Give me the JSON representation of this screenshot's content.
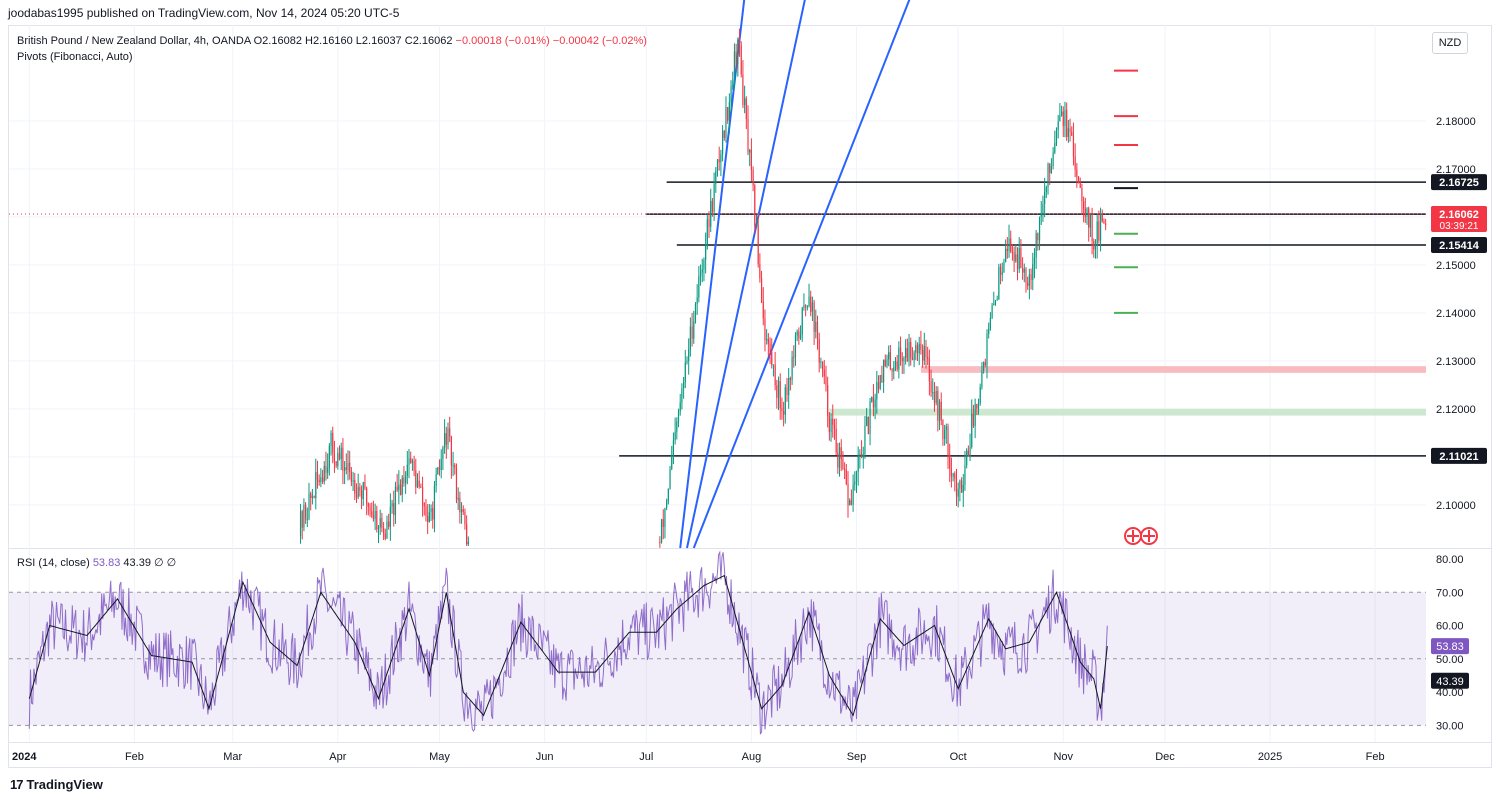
{
  "header": {
    "publisher": "joodabas1995 published on TradingView.com, Nov 14, 2024 05:20 UTC-5"
  },
  "legend": {
    "symbol": "British Pound / New Zealand Dollar, 4h, OANDA",
    "open": "O2.16082",
    "high": "H2.16160",
    "low": "L2.16037",
    "close": "C2.16062",
    "change": "−0.00018 (−0.01%)",
    "spread": "−0.00042 (−0.02%)",
    "indicator": "Pivots (Fibonacci, Auto)"
  },
  "currency_button": "NZD",
  "rsi_legend": {
    "label": "RSI (14, close)",
    "rsi": "53.83",
    "ma": "43.39",
    "extra1": "∅",
    "extra2": "∅"
  },
  "footer": {
    "brand": "TradingView",
    "logo": "17"
  },
  "colors": {
    "up": "#089981",
    "down": "#f23645",
    "rsi": "#7e57c2",
    "trend": "#2962ff",
    "pivot_r": "#f23645",
    "pivot_s": "#4caf50",
    "band": "#7e57c2"
  },
  "chart_data": [
    {
      "type": "candlestick",
      "title": "British Pound / New Zealand Dollar, 4h, OANDA",
      "ylim": [
        2.091,
        2.2
      ],
      "y_ticks": [
        2.1,
        2.11,
        2.12,
        2.13,
        2.14,
        2.15,
        2.16,
        2.17,
        2.18
      ],
      "y_tick_labels": [
        "2.10000",
        "2.11021",
        "2.12000",
        "2.13000",
        "2.14000",
        "2.15000",
        "2.16058",
        "2.17000",
        "2.18000"
      ],
      "x_tick_labels": [
        "2024",
        "Feb",
        "Mar",
        "Apr",
        "May",
        "Jun",
        "Jul",
        "Aug",
        "Sep",
        "Oct",
        "Nov",
        "Dec",
        "2025",
        "Feb"
      ],
      "price_path": [
        {
          "date": "2024-03-20",
          "close": 2.094
        },
        {
          "date": "2024-03-30",
          "close": 2.112
        },
        {
          "date": "2024-04-07",
          "close": 2.104
        },
        {
          "date": "2024-04-15",
          "close": 2.094
        },
        {
          "date": "2024-04-22",
          "close": 2.11
        },
        {
          "date": "2024-04-28",
          "close": 2.096
        },
        {
          "date": "2024-05-03",
          "close": 2.115
        },
        {
          "date": "2024-05-07",
          "close": 2.1
        },
        {
          "date": "2024-05-10",
          "close": 2.09
        },
        {
          "date": "2024-07-05",
          "close": 2.092
        },
        {
          "date": "2024-07-15",
          "close": 2.14
        },
        {
          "date": "2024-07-25",
          "close": 2.183
        },
        {
          "date": "2024-07-28",
          "close": 2.197
        },
        {
          "date": "2024-08-02",
          "close": 2.16
        },
        {
          "date": "2024-08-05",
          "close": 2.136
        },
        {
          "date": "2024-08-10",
          "close": 2.12
        },
        {
          "date": "2024-08-18",
          "close": 2.145
        },
        {
          "date": "2024-08-24",
          "close": 2.118
        },
        {
          "date": "2024-08-30",
          "close": 2.1
        },
        {
          "date": "2024-09-08",
          "close": 2.128
        },
        {
          "date": "2024-09-20",
          "close": 2.134
        },
        {
          "date": "2024-09-28",
          "close": 2.112
        },
        {
          "date": "2024-10-01",
          "close": 2.101
        },
        {
          "date": "2024-10-08",
          "close": 2.128
        },
        {
          "date": "2024-10-15",
          "close": 2.155
        },
        {
          "date": "2024-10-22",
          "close": 2.148
        },
        {
          "date": "2024-10-28",
          "close": 2.17
        },
        {
          "date": "2024-10-31",
          "close": 2.184
        },
        {
          "date": "2024-11-05",
          "close": 2.17
        },
        {
          "date": "2024-11-10",
          "close": 2.155
        },
        {
          "date": "2024-11-14",
          "close": 2.16062
        }
      ],
      "last_price": {
        "value": 2.16062,
        "label": "2.16062",
        "countdown": "03:39:21"
      },
      "horizontal_levels": [
        {
          "value": 2.16725,
          "label": "2.16725",
          "start": "2024-07-07"
        },
        {
          "value": 2.16058,
          "label": "2.16058",
          "start": "2024-07-01"
        },
        {
          "value": 2.15414,
          "label": "2.15414",
          "start": "2024-07-10"
        },
        {
          "value": 2.11021,
          "label": "2.11021",
          "start": "2024-06-23"
        }
      ],
      "zones": [
        {
          "low": 2.1275,
          "high": 2.1289,
          "start": "2024-09-20",
          "color": "#f7b5b9"
        },
        {
          "low": 2.1186,
          "high": 2.12,
          "start": "2024-08-24",
          "color": "#c8e6c9"
        }
      ],
      "pivots": {
        "resistance": [
          2.175,
          2.181,
          2.1905
        ],
        "pivot": 2.166,
        "support": [
          2.1565,
          2.1495,
          2.14
        ],
        "start": "2024-11-10",
        "end": "2024-11-16"
      },
      "trendlines": [
        {
          "from": {
            "date": "2024-07-11",
            "value": 2.091
          },
          "to": {
            "date": "2024-07-30",
            "value": 2.206
          }
        },
        {
          "from": {
            "date": "2024-07-13",
            "value": 2.091
          },
          "to": {
            "date": "2024-08-17",
            "value": 2.206
          }
        },
        {
          "from": {
            "date": "2024-07-15",
            "value": 2.091
          },
          "to": {
            "date": "2024-09-17",
            "value": 2.206
          }
        }
      ]
    },
    {
      "type": "line",
      "title": "RSI (14, close)",
      "ylim": [
        25,
        83
      ],
      "y_ticks": [
        30,
        40,
        50,
        60,
        70,
        80
      ],
      "y_tick_labels": [
        "30.00",
        "40.00",
        "50.00",
        "60.00",
        "70.00",
        "80.00"
      ],
      "band": [
        30,
        70
      ],
      "series": [
        {
          "name": "RSI",
          "last": 53.83,
          "last_label": "53.83"
        },
        {
          "name": "RSI MA",
          "last": 43.39,
          "last_label": "43.39"
        }
      ],
      "rsi_path": [
        {
          "date": "2024-01-01",
          "rsi": 38
        },
        {
          "date": "2024-01-07",
          "rsi": 60
        },
        {
          "date": "2024-01-18",
          "rsi": 57
        },
        {
          "date": "2024-01-27",
          "rsi": 68
        },
        {
          "date": "2024-02-06",
          "rsi": 51
        },
        {
          "date": "2024-02-18",
          "rsi": 49
        },
        {
          "date": "2024-02-23",
          "rsi": 35
        },
        {
          "date": "2024-03-04",
          "rsi": 73
        },
        {
          "date": "2024-03-12",
          "rsi": 55
        },
        {
          "date": "2024-03-20",
          "rsi": 48
        },
        {
          "date": "2024-03-27",
          "rsi": 70
        },
        {
          "date": "2024-04-06",
          "rsi": 55
        },
        {
          "date": "2024-04-13",
          "rsi": 38
        },
        {
          "date": "2024-04-22",
          "rsi": 65
        },
        {
          "date": "2024-04-28",
          "rsi": 45
        },
        {
          "date": "2024-05-03",
          "rsi": 70
        },
        {
          "date": "2024-05-08",
          "rsi": 40
        },
        {
          "date": "2024-05-14",
          "rsi": 33
        },
        {
          "date": "2024-05-25",
          "rsi": 61
        },
        {
          "date": "2024-06-05",
          "rsi": 46
        },
        {
          "date": "2024-06-16",
          "rsi": 46
        },
        {
          "date": "2024-06-26",
          "rsi": 58
        },
        {
          "date": "2024-07-04",
          "rsi": 58
        },
        {
          "date": "2024-07-10",
          "rsi": 65
        },
        {
          "date": "2024-07-18",
          "rsi": 72
        },
        {
          "date": "2024-07-24",
          "rsi": 75
        },
        {
          "date": "2024-08-04",
          "rsi": 35
        },
        {
          "date": "2024-08-10",
          "rsi": 42
        },
        {
          "date": "2024-08-18",
          "rsi": 64
        },
        {
          "date": "2024-08-24",
          "rsi": 45
        },
        {
          "date": "2024-08-31",
          "rsi": 33
        },
        {
          "date": "2024-09-08",
          "rsi": 62
        },
        {
          "date": "2024-09-15",
          "rsi": 54
        },
        {
          "date": "2024-09-24",
          "rsi": 60
        },
        {
          "date": "2024-10-01",
          "rsi": 41
        },
        {
          "date": "2024-10-10",
          "rsi": 62
        },
        {
          "date": "2024-10-15",
          "rsi": 53
        },
        {
          "date": "2024-10-22",
          "rsi": 55
        },
        {
          "date": "2024-10-30",
          "rsi": 70
        },
        {
          "date": "2024-11-06",
          "rsi": 49
        },
        {
          "date": "2024-11-10",
          "rsi": 44
        },
        {
          "date": "2024-11-12",
          "rsi": 35
        },
        {
          "date": "2024-11-14",
          "rsi": 53.83
        }
      ]
    }
  ]
}
